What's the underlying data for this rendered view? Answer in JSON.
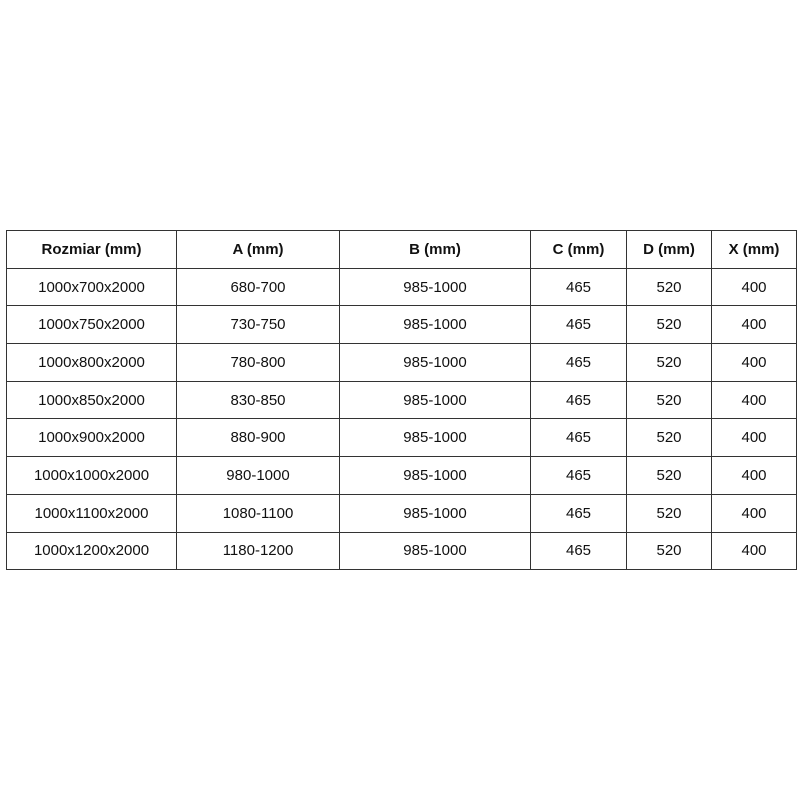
{
  "table": {
    "headers": [
      "Rozmiar (mm)",
      "A (mm)",
      "B (mm)",
      "C (mm)",
      "D (mm)",
      "X (mm)"
    ],
    "rows": [
      [
        "1000x700x2000",
        "680-700",
        "985-1000",
        "465",
        "520",
        "400"
      ],
      [
        "1000x750x2000",
        "730-750",
        "985-1000",
        "465",
        "520",
        "400"
      ],
      [
        "1000x800x2000",
        "780-800",
        "985-1000",
        "465",
        "520",
        "400"
      ],
      [
        "1000x850x2000",
        "830-850",
        "985-1000",
        "465",
        "520",
        "400"
      ],
      [
        "1000x900x2000",
        "880-900",
        "985-1000",
        "465",
        "520",
        "400"
      ],
      [
        "1000x1000x2000",
        "980-1000",
        "985-1000",
        "465",
        "520",
        "400"
      ],
      [
        "1000x1100x2000",
        "1080-1100",
        "985-1000",
        "465",
        "520",
        "400"
      ],
      [
        "1000x1200x2000",
        "1180-1200",
        "985-1000",
        "465",
        "520",
        "400"
      ]
    ]
  }
}
